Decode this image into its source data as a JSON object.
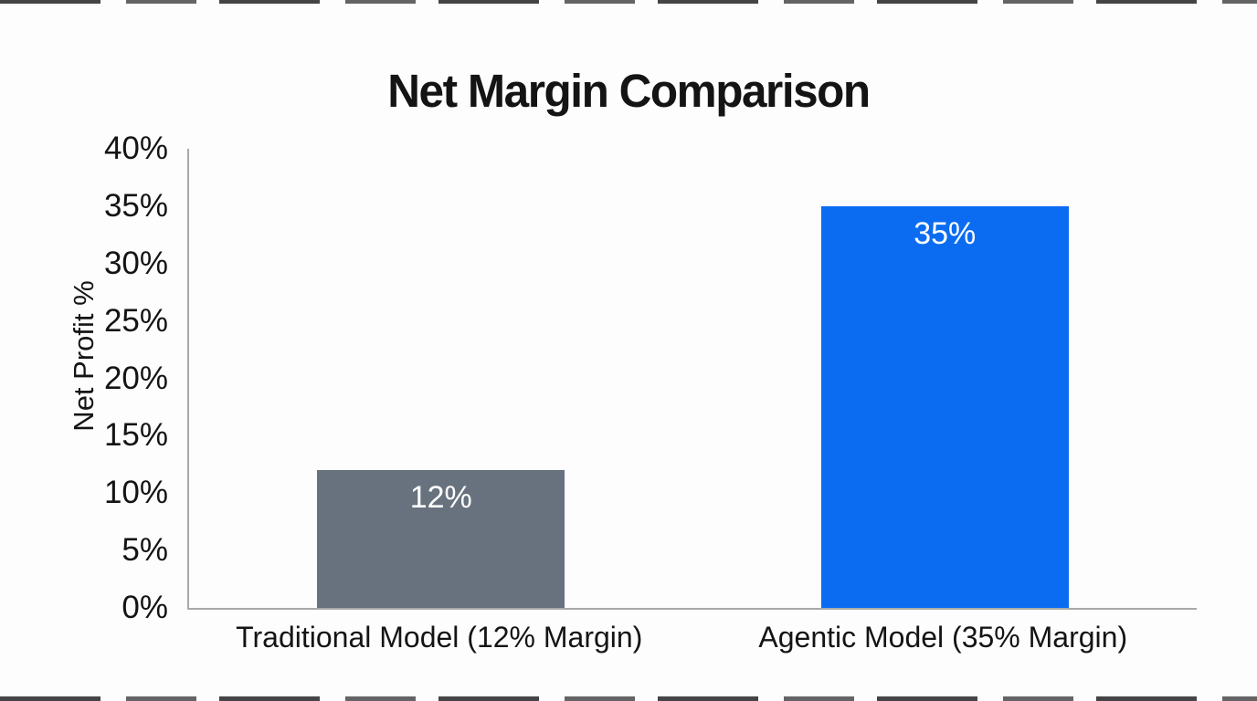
{
  "chart_data": {
    "type": "bar",
    "title": "Net Margin Comparison",
    "ylabel": "Net Profit %",
    "xlabel": "",
    "categories": [
      "Traditional Model (12% Margin)",
      "Agentic Model (35% Margin)"
    ],
    "values": [
      12,
      35
    ],
    "bar_value_labels": [
      "12%",
      "35%"
    ],
    "bar_colors": [
      "#68727f",
      "#0b6cf2"
    ],
    "bar_value_label_color": "#ffffff",
    "ylim": [
      0,
      40
    ],
    "ytick_step": 5,
    "ytick_labels": [
      "0%",
      "5%",
      "10%",
      "15%",
      "20%",
      "25%",
      "30%",
      "35%",
      "40%"
    ],
    "grid": false,
    "legend_position": "none",
    "axis_color": "#a9a9a9",
    "title_color": "#141414",
    "text_color": "#141414"
  }
}
